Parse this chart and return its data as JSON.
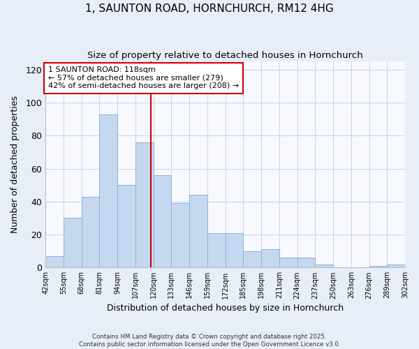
{
  "title_line1": "1, SAUNTON ROAD, HORNCHURCH, RM12 4HG",
  "title_line2": "Size of property relative to detached houses in Hornchurch",
  "xlabel": "Distribution of detached houses by size in Hornchurch",
  "ylabel": "Number of detached properties",
  "bar_color": "#c5d8ef",
  "bar_edge_color": "#8ab4d8",
  "bins": [
    42,
    55,
    68,
    81,
    94,
    107,
    120,
    133,
    146,
    159,
    172,
    185,
    198,
    211,
    224,
    237,
    250,
    263,
    276,
    289,
    302
  ],
  "counts": [
    7,
    30,
    43,
    93,
    50,
    76,
    56,
    39,
    44,
    21,
    21,
    10,
    11,
    6,
    6,
    2,
    0,
    0,
    1,
    2
  ],
  "property_size": 118,
  "annotation_title": "1 SAUNTON ROAD: 118sqm",
  "annotation_line2": "← 57% of detached houses are smaller (279)",
  "annotation_line3": "42% of semi-detached houses are larger (208) →",
  "vline_color": "#cc0000",
  "annotation_box_color": "#ffffff",
  "annotation_box_edge": "#cc0000",
  "ylim": [
    0,
    125
  ],
  "yticks": [
    0,
    20,
    40,
    60,
    80,
    100,
    120
  ],
  "footer_line1": "Contains HM Land Registry data © Crown copyright and database right 2025.",
  "footer_line2": "Contains public sector information licensed under the Open Government Licence v3.0.",
  "bg_color": "#e8eef8",
  "plot_bg_color": "#f8f8ff",
  "grid_color": "#c8d4e8"
}
